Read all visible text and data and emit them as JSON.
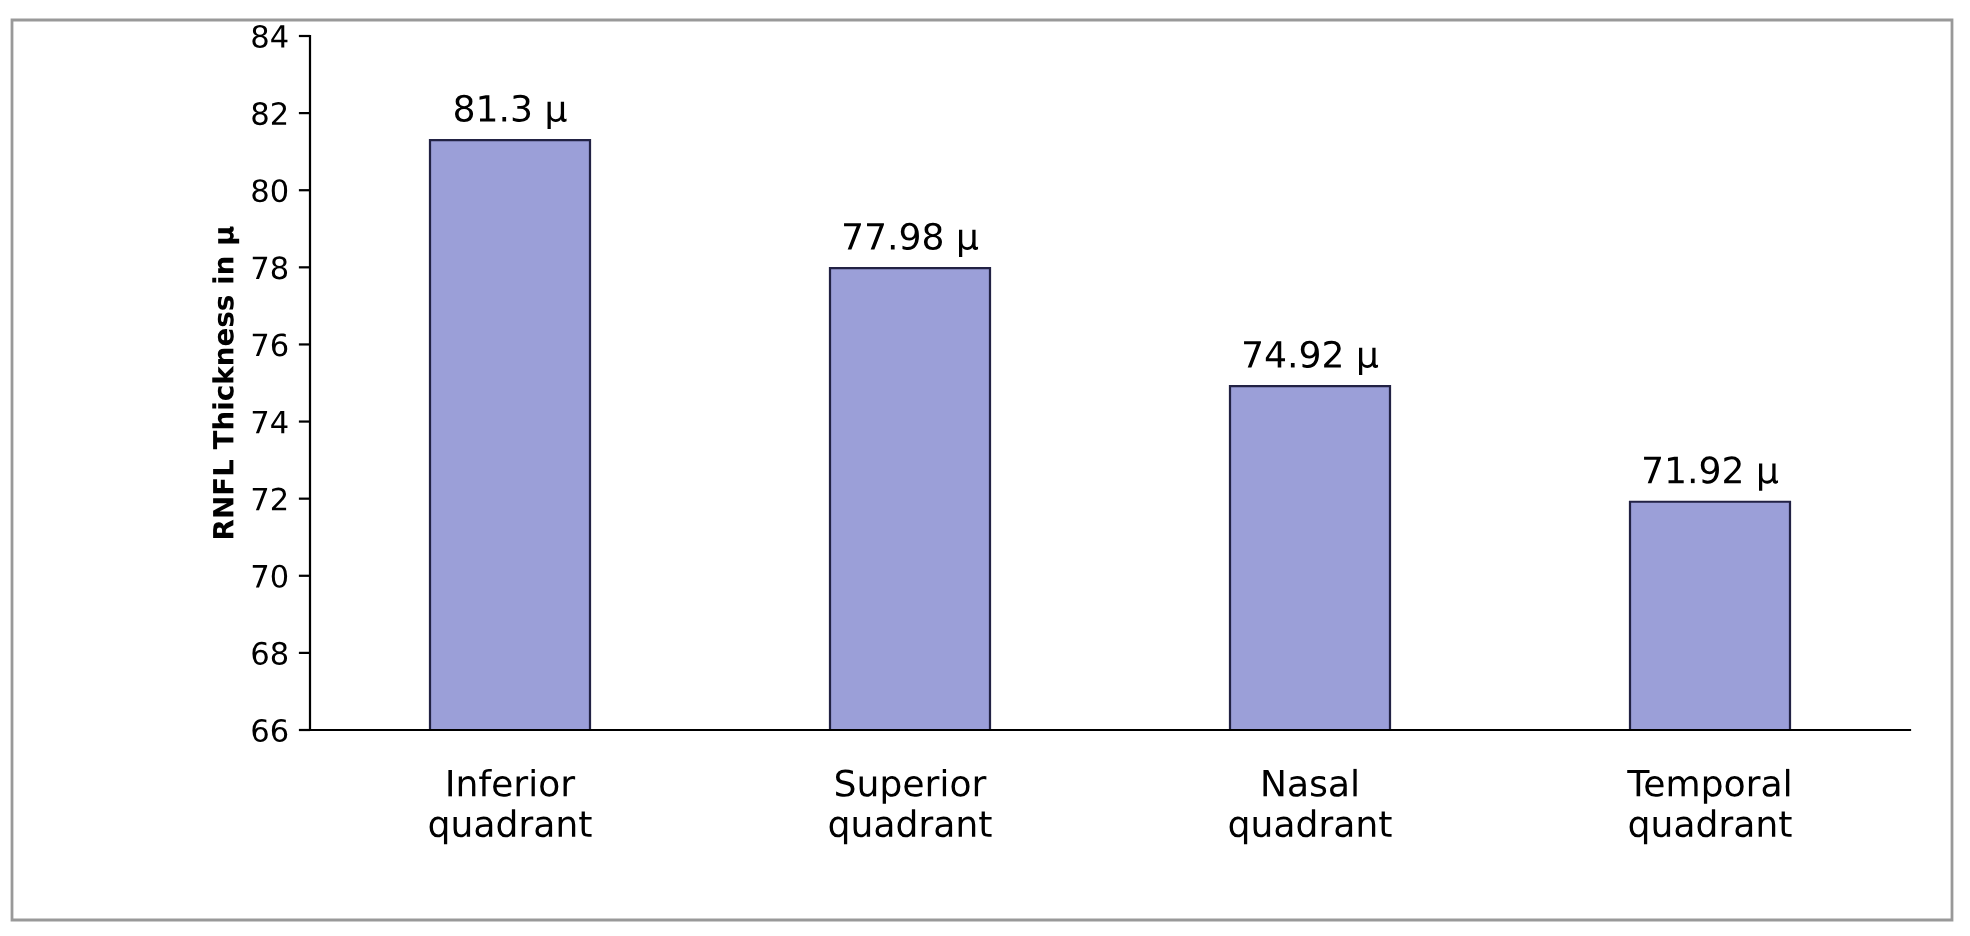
{
  "chart_data": {
    "type": "bar",
    "ylabel": "RNFL Thickness in μ",
    "categories": [
      "Inferior\nquadrant",
      "Superior\nquadrant",
      "Nasal\nquadrant",
      "Temporal\nquadrant"
    ],
    "values": [
      81.3,
      77.98,
      74.92,
      71.92
    ],
    "value_labels": [
      "81.3 μ",
      "77.98 μ",
      "74.92 μ",
      "71.92 μ"
    ],
    "color": "#9b9fd8",
    "ylim": [
      66,
      84
    ],
    "yticks": [
      66,
      68,
      70,
      72,
      74,
      76,
      78,
      80,
      82,
      84
    ],
    "grid": false,
    "legend": false
  }
}
